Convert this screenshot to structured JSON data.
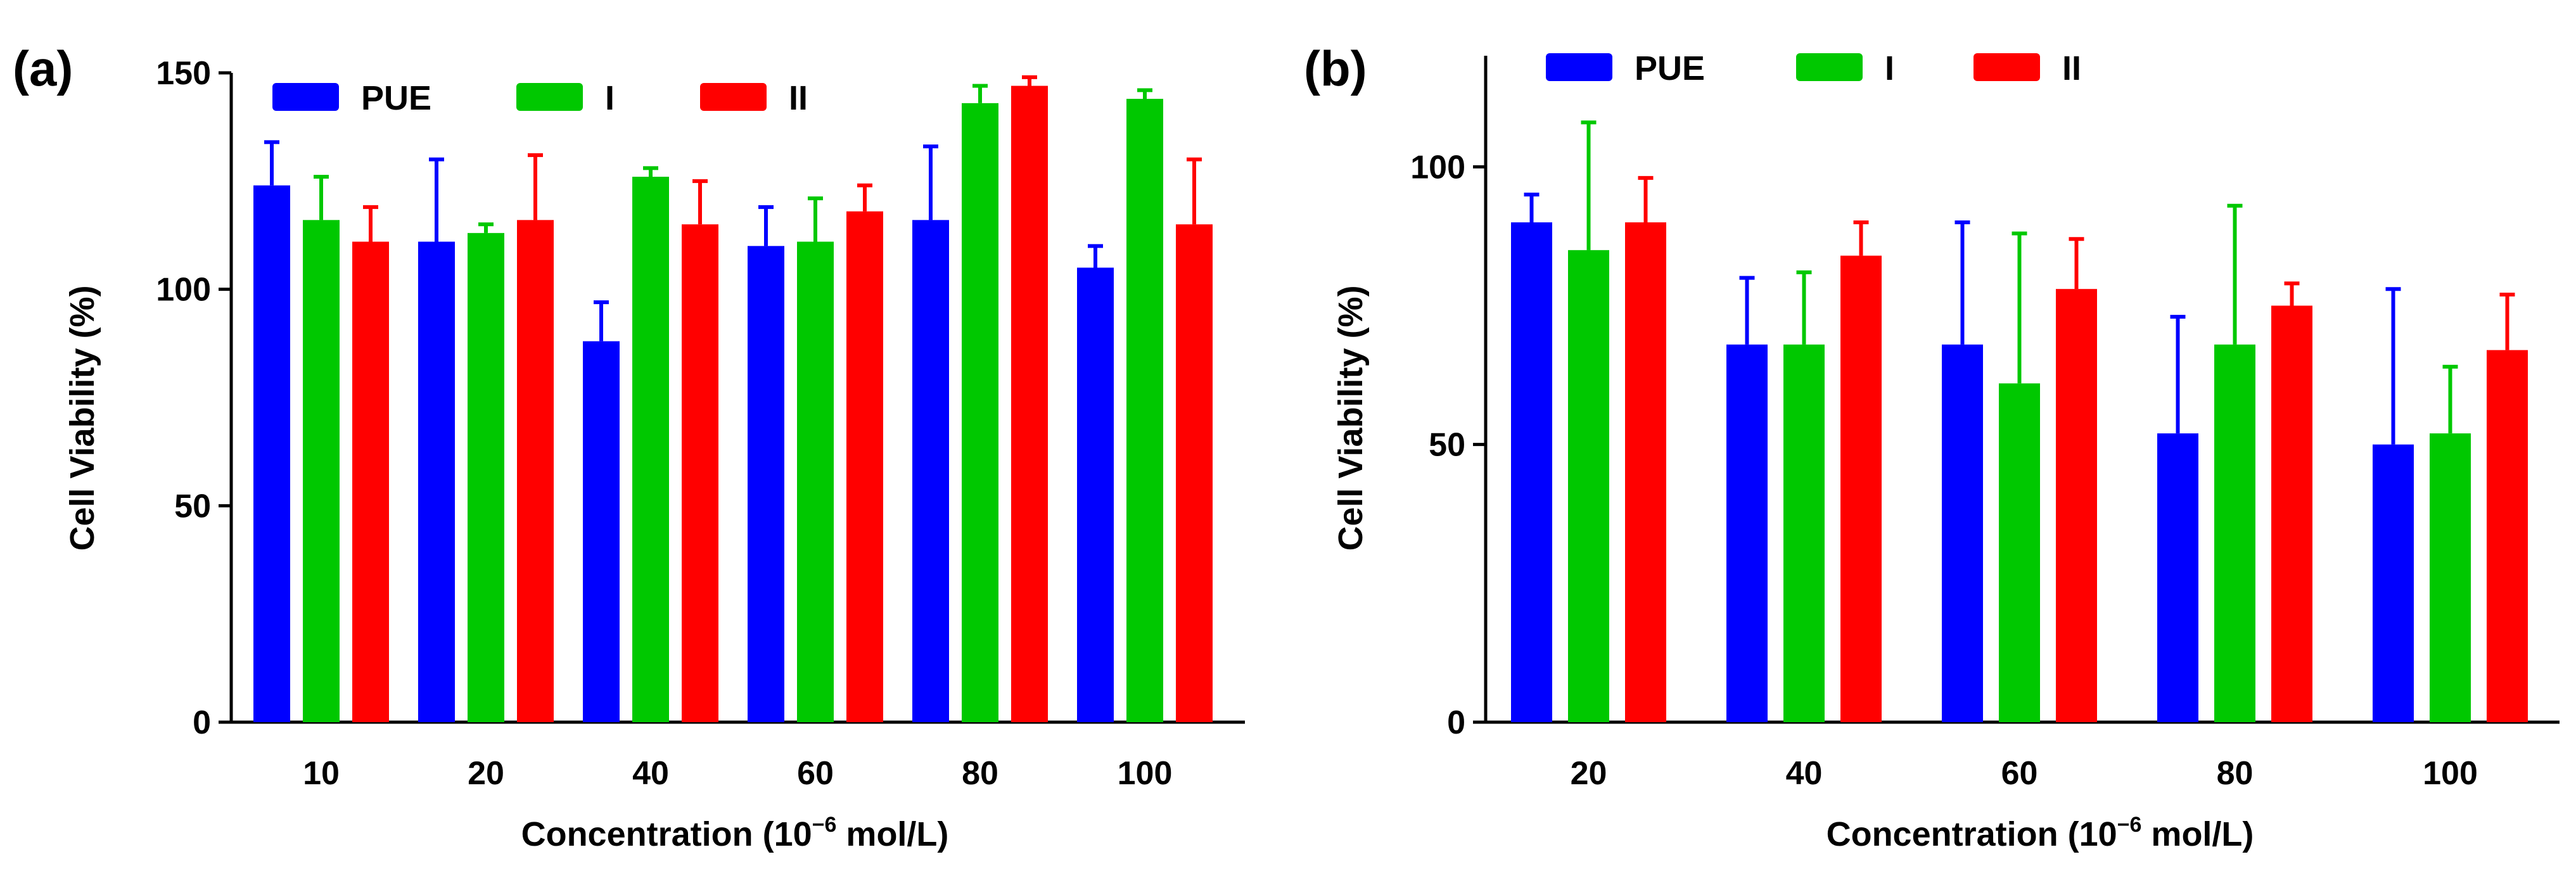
{
  "chart_data": [
    {
      "type": "bar",
      "panel_label": "(a)",
      "title": "",
      "xlabel_main": "Concentration (10",
      "xlabel_sup": "−6",
      "xlabel_tail": " mol/L)",
      "ylabel": "Cell Viability (%)",
      "categories": [
        "10",
        "20",
        "40",
        "60",
        "80",
        "100"
      ],
      "ylim": [
        0,
        150
      ],
      "yticks": [
        "0",
        "50",
        "100",
        "150"
      ],
      "grid": false,
      "legend": "top",
      "series": [
        {
          "name": "PUE",
          "color": "#0000ff",
          "values": [
            124,
            111,
            88,
            110,
            116,
            105
          ],
          "errors": [
            10,
            19,
            9,
            9,
            17,
            5
          ]
        },
        {
          "name": "I",
          "color": "#00c800",
          "values": [
            116,
            113,
            126,
            111,
            143,
            144
          ],
          "errors": [
            10,
            2,
            2,
            10,
            4,
            2
          ]
        },
        {
          "name": "II",
          "color": "#ff0000",
          "values": [
            111,
            116,
            115,
            118,
            147,
            115
          ],
          "errors": [
            8,
            15,
            10,
            6,
            2,
            15
          ]
        }
      ]
    },
    {
      "type": "bar",
      "panel_label": "(b)",
      "title": "",
      "xlabel_main": "Concentration (10",
      "xlabel_sup": "−6",
      "xlabel_tail": " mol/L)",
      "ylabel": "Cell Viability (%)",
      "categories": [
        "20",
        "40",
        "60",
        "80",
        "100"
      ],
      "ylim": [
        0,
        120
      ],
      "yticks": [
        "0",
        "50",
        "100"
      ],
      "grid": false,
      "legend": "top",
      "series": [
        {
          "name": "PUE",
          "color": "#0000ff",
          "values": [
            90,
            68,
            68,
            52,
            50
          ],
          "errors": [
            5,
            12,
            22,
            21,
            28
          ]
        },
        {
          "name": "I",
          "color": "#00c800",
          "values": [
            85,
            68,
            61,
            68,
            52
          ],
          "errors": [
            23,
            13,
            27,
            25,
            12
          ]
        },
        {
          "name": "II",
          "color": "#ff0000",
          "values": [
            90,
            84,
            78,
            75,
            67
          ],
          "errors": [
            8,
            6,
            9,
            4,
            10
          ]
        }
      ]
    }
  ]
}
